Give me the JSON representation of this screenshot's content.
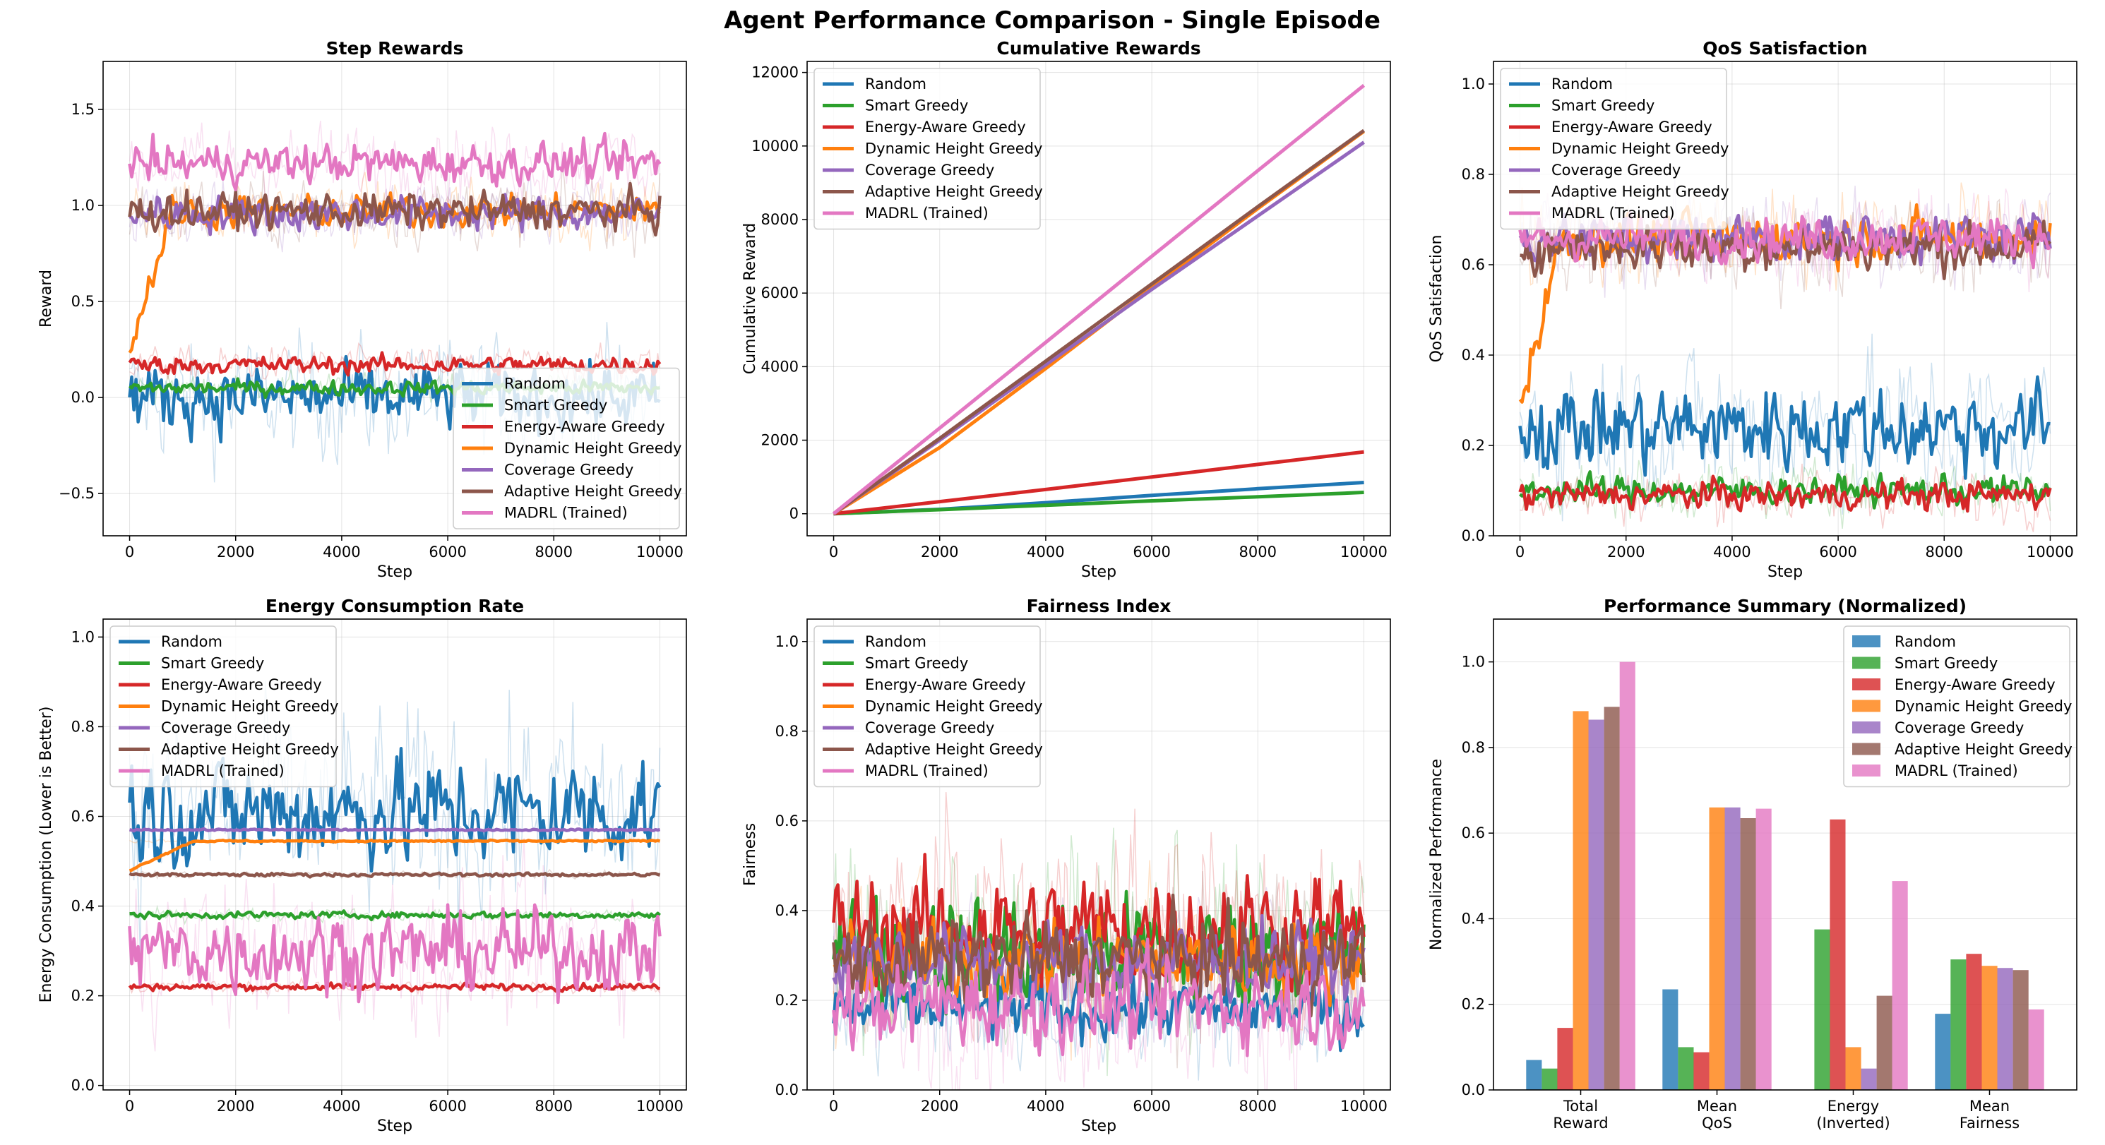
{
  "figure": {
    "title": "Agent Performance Comparison - Single Episode"
  },
  "chart_data": [
    {
      "type": "line",
      "title": "Step Rewards",
      "xlabel": "Step",
      "ylabel": "Reward",
      "xlim": [
        -500,
        10500
      ],
      "ylim": [
        -0.72,
        1.75
      ],
      "xticks": [
        0,
        2000,
        4000,
        6000,
        8000,
        10000
      ],
      "xtick_labels": [
        "0",
        "2000",
        "4000",
        "6000",
        "8000",
        "10000"
      ],
      "yticks": [
        -0.5,
        0.0,
        0.5,
        1.0,
        1.5
      ],
      "ytick_labels": [
        "−0.5",
        "0.0",
        "0.5",
        "1.0",
        "1.5"
      ],
      "grid": true,
      "legend_position": "lower-right",
      "series": [
        {
          "name": "Random",
          "color": "#1f77b4",
          "x": [
            0,
            10000
          ],
          "y_smoothed_mean": 0.0,
          "raw_band": [
            -0.45,
            0.45
          ]
        },
        {
          "name": "Smart Greedy",
          "color": "#2ca02c",
          "x": [
            0,
            10000
          ],
          "y_smoothed_mean": 0.05,
          "raw_band": [
            -0.05,
            0.15
          ]
        },
        {
          "name": "Energy-Aware Greedy",
          "color": "#d62728",
          "x": [
            0,
            10000
          ],
          "y_smoothed_mean": 0.17,
          "raw_band": [
            0.05,
            0.3
          ]
        },
        {
          "name": "Dynamic Height Greedy",
          "color": "#ff7f0e",
          "x": [
            0,
            10000
          ],
          "y_smoothed_mean": 0.97,
          "raw_band": [
            0.75,
            1.2
          ]
        },
        {
          "name": "Coverage Greedy",
          "color": "#9467bd",
          "x": [
            0,
            10000
          ],
          "y_smoothed_mean": 0.96,
          "raw_band": [
            0.7,
            1.2
          ]
        },
        {
          "name": "Adaptive Height Greedy",
          "color": "#8c564b",
          "x": [
            0,
            10000
          ],
          "y_smoothed_mean": 0.97,
          "raw_band": [
            0.7,
            1.2
          ]
        },
        {
          "name": "MADRL (Trained)",
          "color": "#e377c2",
          "x": [
            0,
            10000
          ],
          "y_smoothed_mean": 1.22,
          "raw_band": [
            0.95,
            1.5
          ]
        }
      ]
    },
    {
      "type": "line",
      "title": "Cumulative Rewards",
      "xlabel": "Step",
      "ylabel": "Cumulative Reward",
      "xlim": [
        -500,
        10500
      ],
      "ylim": [
        -600,
        12300
      ],
      "xticks": [
        0,
        2000,
        4000,
        6000,
        8000,
        10000
      ],
      "xtick_labels": [
        "0",
        "2000",
        "4000",
        "6000",
        "8000",
        "10000"
      ],
      "yticks": [
        0,
        2000,
        4000,
        6000,
        8000,
        10000,
        12000
      ],
      "ytick_labels": [
        "0",
        "2000",
        "4000",
        "6000",
        "8000",
        "10000",
        "12000"
      ],
      "grid": true,
      "legend_position": "upper-left",
      "series": [
        {
          "name": "Random",
          "color": "#1f77b4",
          "x": [
            0,
            2000,
            4000,
            6000,
            8000,
            10000
          ],
          "y": [
            0,
            120,
            300,
            500,
            680,
            850
          ]
        },
        {
          "name": "Smart Greedy",
          "color": "#2ca02c",
          "x": [
            0,
            2000,
            4000,
            6000,
            8000,
            10000
          ],
          "y": [
            0,
            110,
            230,
            350,
            460,
            580
          ]
        },
        {
          "name": "Energy-Aware Greedy",
          "color": "#d62728",
          "x": [
            0,
            2000,
            4000,
            6000,
            8000,
            10000
          ],
          "y": [
            0,
            330,
            660,
            1000,
            1340,
            1680
          ]
        },
        {
          "name": "Dynamic Height Greedy",
          "color": "#ff7f0e",
          "x": [
            0,
            2000,
            4000,
            6000,
            8000,
            10000
          ],
          "y": [
            0,
            1800,
            3950,
            6150,
            8300,
            10400
          ]
        },
        {
          "name": "Coverage Greedy",
          "color": "#9467bd",
          "x": [
            0,
            2000,
            4000,
            6000,
            8000,
            10000
          ],
          "y": [
            0,
            2000,
            4050,
            6100,
            8100,
            10100
          ]
        },
        {
          "name": "Adaptive Height Greedy",
          "color": "#8c564b",
          "x": [
            0,
            2000,
            4000,
            6000,
            8000,
            10000
          ],
          "y": [
            0,
            2050,
            4150,
            6250,
            8350,
            10420
          ]
        },
        {
          "name": "MADRL (Trained)",
          "color": "#e377c2",
          "x": [
            0,
            2000,
            4000,
            6000,
            8000,
            10000
          ],
          "y": [
            0,
            2330,
            4660,
            7000,
            9330,
            11650
          ]
        }
      ]
    },
    {
      "type": "line",
      "title": "QoS Satisfaction",
      "xlabel": "Step",
      "ylabel": "QoS Satisfaction",
      "xlim": [
        -500,
        10500
      ],
      "ylim": [
        0.0,
        1.05
      ],
      "xticks": [
        0,
        2000,
        4000,
        6000,
        8000,
        10000
      ],
      "xtick_labels": [
        "0",
        "2000",
        "4000",
        "6000",
        "8000",
        "10000"
      ],
      "yticks": [
        0.0,
        0.2,
        0.4,
        0.6,
        0.8,
        1.0
      ],
      "ytick_labels": [
        "0.0",
        "0.2",
        "0.4",
        "0.6",
        "0.8",
        "1.0"
      ],
      "grid": true,
      "legend_position": "upper-left",
      "series": [
        {
          "name": "Random",
          "color": "#1f77b4",
          "x": [
            0,
            10000
          ],
          "y_smoothed_mean": 0.24,
          "raw_band": [
            0.05,
            0.55
          ]
        },
        {
          "name": "Smart Greedy",
          "color": "#2ca02c",
          "x": [
            0,
            10000
          ],
          "y_smoothed_mean": 0.1,
          "raw_band": [
            0.03,
            0.2
          ]
        },
        {
          "name": "Energy-Aware Greedy",
          "color": "#d62728",
          "x": [
            0,
            10000
          ],
          "y_smoothed_mean": 0.09,
          "raw_band": [
            0.03,
            0.2
          ]
        },
        {
          "name": "Dynamic Height Greedy",
          "color": "#ff7f0e",
          "x": [
            0,
            10000
          ],
          "y_smoothed_mean": 0.66,
          "raw_band": [
            0.5,
            0.78
          ]
        },
        {
          "name": "Coverage Greedy",
          "color": "#9467bd",
          "x": [
            0,
            10000
          ],
          "y_smoothed_mean": 0.66,
          "raw_band": [
            0.5,
            0.78
          ]
        },
        {
          "name": "Adaptive Height Greedy",
          "color": "#8c564b",
          "x": [
            0,
            10000
          ],
          "y_smoothed_mean": 0.64,
          "raw_band": [
            0.48,
            0.76
          ]
        },
        {
          "name": "MADRL (Trained)",
          "color": "#e377c2",
          "x": [
            0,
            10000
          ],
          "y_smoothed_mean": 0.66,
          "raw_band": [
            0.52,
            0.78
          ]
        }
      ]
    },
    {
      "type": "line",
      "title": "Energy Consumption Rate",
      "xlabel": "Step",
      "ylabel": "Energy Consumption (Lower is Better)",
      "xlim": [
        -500,
        10500
      ],
      "ylim": [
        -0.01,
        1.04
      ],
      "xticks": [
        0,
        2000,
        4000,
        6000,
        8000,
        10000
      ],
      "xtick_labels": [
        "0",
        "2000",
        "4000",
        "6000",
        "8000",
        "10000"
      ],
      "yticks": [
        0.0,
        0.2,
        0.4,
        0.6,
        0.8,
        1.0
      ],
      "ytick_labels": [
        "0.0",
        "0.2",
        "0.4",
        "0.6",
        "0.8",
        "1.0"
      ],
      "grid": true,
      "legend_position": "upper-left",
      "series": [
        {
          "name": "Random",
          "color": "#1f77b4",
          "x": [
            0,
            10000
          ],
          "y_smoothed_mean": 0.61,
          "raw_band": [
            0.3,
            0.95
          ]
        },
        {
          "name": "Smart Greedy",
          "color": "#2ca02c",
          "x": [
            0,
            10000
          ],
          "y_smoothed_mean": 0.38,
          "raw_band": [
            0.36,
            0.4
          ]
        },
        {
          "name": "Energy-Aware Greedy",
          "color": "#d62728",
          "x": [
            0,
            10000
          ],
          "y_smoothed_mean": 0.22,
          "raw_band": [
            0.2,
            0.24
          ]
        },
        {
          "name": "Dynamic Height Greedy",
          "color": "#ff7f0e",
          "x": [
            0,
            10000
          ],
          "y_smoothed_mean": 0.545,
          "raw_band": [
            0.54,
            0.55
          ]
        },
        {
          "name": "Coverage Greedy",
          "color": "#9467bd",
          "x": [
            0,
            10000
          ],
          "y_smoothed_mean": 0.57,
          "raw_band": [
            0.565,
            0.575
          ]
        },
        {
          "name": "Adaptive Height Greedy",
          "color": "#8c564b",
          "x": [
            0,
            10000
          ],
          "y_smoothed_mean": 0.47,
          "raw_band": [
            0.46,
            0.48
          ]
        },
        {
          "name": "MADRL (Trained)",
          "color": "#e377c2",
          "x": [
            0,
            10000
          ],
          "y_smoothed_mean": 0.3,
          "raw_band": [
            0.08,
            0.55
          ]
        }
      ]
    },
    {
      "type": "line",
      "title": "Fairness Index",
      "xlabel": "Step",
      "ylabel": "Fairness",
      "xlim": [
        -500,
        10500
      ],
      "ylim": [
        0.0,
        1.05
      ],
      "xticks": [
        0,
        2000,
        4000,
        6000,
        8000,
        10000
      ],
      "xtick_labels": [
        "0",
        "2000",
        "4000",
        "6000",
        "8000",
        "10000"
      ],
      "yticks": [
        0.0,
        0.2,
        0.4,
        0.6,
        0.8,
        1.0
      ],
      "ytick_labels": [
        "0.0",
        "0.2",
        "0.4",
        "0.6",
        "0.8",
        "1.0"
      ],
      "grid": true,
      "legend_position": "upper-left",
      "series": [
        {
          "name": "Random",
          "color": "#1f77b4",
          "x": [
            0,
            10000
          ],
          "y_smoothed_mean": 0.18,
          "raw_band": [
            0.03,
            0.4
          ]
        },
        {
          "name": "Smart Greedy",
          "color": "#2ca02c",
          "x": [
            0,
            10000
          ],
          "y_smoothed_mean": 0.31,
          "raw_band": [
            0.05,
            0.7
          ]
        },
        {
          "name": "Energy-Aware Greedy",
          "color": "#d62728",
          "x": [
            0,
            10000
          ],
          "y_smoothed_mean": 0.36,
          "raw_band": [
            0.1,
            0.75
          ]
        },
        {
          "name": "Dynamic Height Greedy",
          "color": "#ff7f0e",
          "x": [
            0,
            10000
          ],
          "y_smoothed_mean": 0.29,
          "raw_band": [
            0.1,
            0.55
          ]
        },
        {
          "name": "Coverage Greedy",
          "color": "#9467bd",
          "x": [
            0,
            10000
          ],
          "y_smoothed_mean": 0.29,
          "raw_band": [
            0.1,
            0.55
          ]
        },
        {
          "name": "Adaptive Height Greedy",
          "color": "#8c564b",
          "x": [
            0,
            10000
          ],
          "y_smoothed_mean": 0.29,
          "raw_band": [
            0.1,
            0.6
          ]
        },
        {
          "name": "MADRL (Trained)",
          "color": "#e377c2",
          "x": [
            0,
            10000
          ],
          "y_smoothed_mean": 0.19,
          "raw_band": [
            0.03,
            0.55
          ]
        }
      ]
    },
    {
      "type": "bar",
      "title": "Performance Summary (Normalized)",
      "xlabel": "",
      "ylabel": "Normalized Performance",
      "categories": [
        "Total\nReward",
        "Mean\nQoS",
        "Energy\n(Inverted)",
        "Mean\nFairness"
      ],
      "ylim": [
        0.0,
        1.1
      ],
      "yticks": [
        0.0,
        0.2,
        0.4,
        0.6,
        0.8,
        1.0
      ],
      "ytick_labels": [
        "0.0",
        "0.2",
        "0.4",
        "0.6",
        "0.8",
        "1.0"
      ],
      "grid": true,
      "legend_position": "upper-right",
      "series": [
        {
          "name": "Random",
          "color": "#1f77b4",
          "values": [
            0.07,
            0.235,
            0.0,
            0.178
          ]
        },
        {
          "name": "Smart Greedy",
          "color": "#2ca02c",
          "values": [
            0.05,
            0.1,
            0.375,
            0.305
          ]
        },
        {
          "name": "Energy-Aware Greedy",
          "color": "#d62728",
          "values": [
            0.145,
            0.088,
            0.632,
            0.318
          ]
        },
        {
          "name": "Dynamic Height Greedy",
          "color": "#ff7f0e",
          "values": [
            0.885,
            0.66,
            0.1,
            0.29
          ]
        },
        {
          "name": "Coverage Greedy",
          "color": "#9467bd",
          "values": [
            0.865,
            0.66,
            0.05,
            0.285
          ]
        },
        {
          "name": "Adaptive Height Greedy",
          "color": "#8c564b",
          "values": [
            0.895,
            0.635,
            0.22,
            0.28
          ]
        },
        {
          "name": "MADRL (Trained)",
          "color": "#e377c2",
          "values": [
            1.0,
            0.657,
            0.488,
            0.188
          ]
        }
      ]
    }
  ]
}
